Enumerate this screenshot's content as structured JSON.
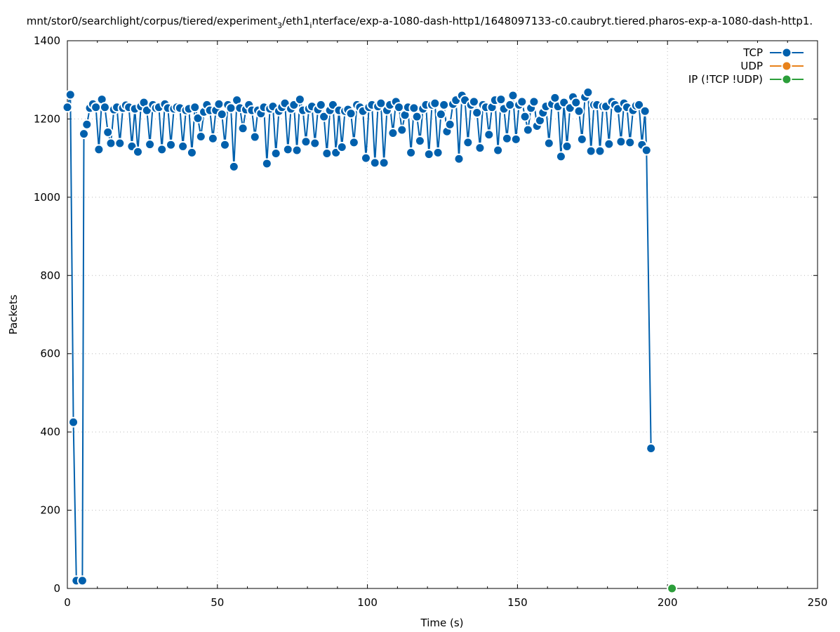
{
  "chart_data": {
    "type": "line",
    "title": {
      "part1": "mnt/stor0/searchlight/corpus/tiered/experiment",
      "sub1": "3",
      "part2": "/eth1",
      "sub2": "i",
      "part3": "nterface/exp-a-1080-dash-http1/1648097133-c0.caubryt.tiered.pharos-exp-a-1080-dash-http1."
    },
    "xlabel": "Time (s)",
    "ylabel": "Packets",
    "xlim": [
      0,
      250
    ],
    "ylim": [
      0,
      1400
    ],
    "x_ticks": [
      "0",
      "50",
      "100",
      "150",
      "200",
      "250"
    ],
    "y_ticks": [
      "0",
      "200",
      "400",
      "600",
      "800",
      "1000",
      "1200",
      "1400"
    ],
    "grid": true,
    "legend_position": "top-right",
    "series": [
      {
        "name": "TCP",
        "color": "#0060ad",
        "points": [
          [
            0,
            1230
          ],
          [
            1,
            1262
          ],
          [
            2,
            425
          ],
          [
            3,
            20
          ],
          [
            5,
            20
          ],
          [
            5.5,
            1162
          ],
          [
            6.5,
            1186
          ],
          [
            7.5,
            1228
          ],
          [
            8.5,
            1238
          ],
          [
            9.5,
            1230
          ],
          [
            10.5,
            1122
          ],
          [
            11.5,
            1250
          ],
          [
            12.5,
            1230
          ],
          [
            13.5,
            1166
          ],
          [
            14.5,
            1138
          ],
          [
            15.5,
            1224
          ],
          [
            16.5,
            1230
          ],
          [
            17.5,
            1138
          ],
          [
            18.5,
            1228
          ],
          [
            19.5,
            1235
          ],
          [
            20.5,
            1230
          ],
          [
            21.5,
            1130
          ],
          [
            22.5,
            1226
          ],
          [
            23.5,
            1116
          ],
          [
            24.5,
            1232
          ],
          [
            25.5,
            1242
          ],
          [
            26.5,
            1222
          ],
          [
            27.5,
            1135
          ],
          [
            28.5,
            1236
          ],
          [
            29.5,
            1228
          ],
          [
            30.5,
            1230
          ],
          [
            31.5,
            1122
          ],
          [
            32.5,
            1238
          ],
          [
            33.5,
            1228
          ],
          [
            34.5,
            1134
          ],
          [
            35.5,
            1226
          ],
          [
            36.5,
            1230
          ],
          [
            37.5,
            1228
          ],
          [
            38.5,
            1130
          ],
          [
            39.5,
            1222
          ],
          [
            40.5,
            1226
          ],
          [
            41.5,
            1114
          ],
          [
            42.5,
            1230
          ],
          [
            43.5,
            1202
          ],
          [
            44.5,
            1155
          ],
          [
            45.5,
            1218
          ],
          [
            46.5,
            1236
          ],
          [
            47.5,
            1222
          ],
          [
            48.5,
            1150
          ],
          [
            49.5,
            1222
          ],
          [
            50.5,
            1238
          ],
          [
            51.5,
            1212
          ],
          [
            52.5,
            1134
          ],
          [
            53.5,
            1236
          ],
          [
            54.5,
            1228
          ],
          [
            55.5,
            1078
          ],
          [
            56.5,
            1248
          ],
          [
            57.5,
            1228
          ],
          [
            58.5,
            1176
          ],
          [
            59.5,
            1224
          ],
          [
            60.5,
            1236
          ],
          [
            61.5,
            1222
          ],
          [
            62.5,
            1154
          ],
          [
            63.5,
            1222
          ],
          [
            64.5,
            1214
          ],
          [
            65.5,
            1230
          ],
          [
            66.5,
            1086
          ],
          [
            67.5,
            1226
          ],
          [
            68.5,
            1232
          ],
          [
            69.5,
            1112
          ],
          [
            70.5,
            1220
          ],
          [
            71.5,
            1230
          ],
          [
            72.5,
            1240
          ],
          [
            73.5,
            1122
          ],
          [
            74.5,
            1226
          ],
          [
            75.5,
            1236
          ],
          [
            76.5,
            1120
          ],
          [
            77.5,
            1250
          ],
          [
            78.5,
            1222
          ],
          [
            79.5,
            1142
          ],
          [
            80.5,
            1226
          ],
          [
            81.5,
            1232
          ],
          [
            82.5,
            1138
          ],
          [
            83.5,
            1224
          ],
          [
            84.5,
            1236
          ],
          [
            85.5,
            1206
          ],
          [
            86.5,
            1112
          ],
          [
            87.5,
            1222
          ],
          [
            88.5,
            1236
          ],
          [
            89.5,
            1114
          ],
          [
            90.5,
            1222
          ],
          [
            91.5,
            1128
          ],
          [
            92.5,
            1220
          ],
          [
            93.5,
            1224
          ],
          [
            94.5,
            1214
          ],
          [
            95.5,
            1140
          ],
          [
            96.5,
            1236
          ],
          [
            97.5,
            1230
          ],
          [
            98.5,
            1220
          ],
          [
            99.5,
            1100
          ],
          [
            100.5,
            1230
          ],
          [
            101.5,
            1236
          ],
          [
            102.5,
            1088
          ],
          [
            103.5,
            1232
          ],
          [
            104.5,
            1240
          ],
          [
            105.5,
            1088
          ],
          [
            106.5,
            1222
          ],
          [
            107.5,
            1236
          ],
          [
            108.5,
            1164
          ],
          [
            109.5,
            1244
          ],
          [
            110.5,
            1230
          ],
          [
            111.5,
            1172
          ],
          [
            112.5,
            1210
          ],
          [
            113.5,
            1230
          ],
          [
            114.5,
            1114
          ],
          [
            115.5,
            1228
          ],
          [
            116.5,
            1206
          ],
          [
            117.5,
            1144
          ],
          [
            118.5,
            1226
          ],
          [
            119.5,
            1236
          ],
          [
            120.5,
            1110
          ],
          [
            121.5,
            1236
          ],
          [
            122.5,
            1240
          ],
          [
            123.5,
            1114
          ],
          [
            124.5,
            1212
          ],
          [
            125.5,
            1236
          ],
          [
            126.5,
            1168
          ],
          [
            127.5,
            1186
          ],
          [
            128.5,
            1238
          ],
          [
            129.5,
            1248
          ],
          [
            130.5,
            1098
          ],
          [
            131.5,
            1260
          ],
          [
            132.5,
            1248
          ],
          [
            133.5,
            1140
          ],
          [
            134.5,
            1236
          ],
          [
            135.5,
            1244
          ],
          [
            136.5,
            1216
          ],
          [
            137.5,
            1126
          ],
          [
            138.5,
            1236
          ],
          [
            139.5,
            1230
          ],
          [
            140.5,
            1160
          ],
          [
            141.5,
            1230
          ],
          [
            142.5,
            1248
          ],
          [
            143.5,
            1120
          ],
          [
            144.5,
            1250
          ],
          [
            145.5,
            1226
          ],
          [
            146.5,
            1150
          ],
          [
            147.5,
            1236
          ],
          [
            148.5,
            1260
          ],
          [
            149.5,
            1148
          ],
          [
            150.5,
            1236
          ],
          [
            151.5,
            1244
          ],
          [
            152.5,
            1206
          ],
          [
            153.5,
            1172
          ],
          [
            154.5,
            1228
          ],
          [
            155.5,
            1244
          ],
          [
            156.5,
            1182
          ],
          [
            157.5,
            1196
          ],
          [
            158.5,
            1216
          ],
          [
            159.5,
            1232
          ],
          [
            160.5,
            1138
          ],
          [
            161.5,
            1238
          ],
          [
            162.5,
            1254
          ],
          [
            163.5,
            1232
          ],
          [
            164.5,
            1104
          ],
          [
            165.5,
            1242
          ],
          [
            166.5,
            1130
          ],
          [
            167.5,
            1228
          ],
          [
            168.5,
            1256
          ],
          [
            169.5,
            1242
          ],
          [
            170.5,
            1220
          ],
          [
            171.5,
            1148
          ],
          [
            172.5,
            1256
          ],
          [
            173.5,
            1268
          ],
          [
            174.5,
            1118
          ],
          [
            175.5,
            1236
          ],
          [
            176.5,
            1236
          ],
          [
            177.5,
            1118
          ],
          [
            178.5,
            1232
          ],
          [
            179.5,
            1232
          ],
          [
            180.5,
            1136
          ],
          [
            181.5,
            1244
          ],
          [
            182.5,
            1236
          ],
          [
            183.5,
            1226
          ],
          [
            184.5,
            1142
          ],
          [
            185.5,
            1240
          ],
          [
            186.5,
            1230
          ],
          [
            187.5,
            1140
          ],
          [
            188.5,
            1222
          ],
          [
            189.5,
            1234
          ],
          [
            190.5,
            1236
          ],
          [
            191.5,
            1134
          ],
          [
            192.5,
            1220
          ],
          [
            193,
            1120
          ],
          [
            194.5,
            358
          ]
        ]
      },
      {
        "name": "UDP",
        "color": "#e8821b",
        "points": []
      },
      {
        "name": "IP (!TCP  !UDP)",
        "color": "#2c9e3a",
        "points": [
          [
            201.5,
            0
          ]
        ]
      }
    ]
  }
}
